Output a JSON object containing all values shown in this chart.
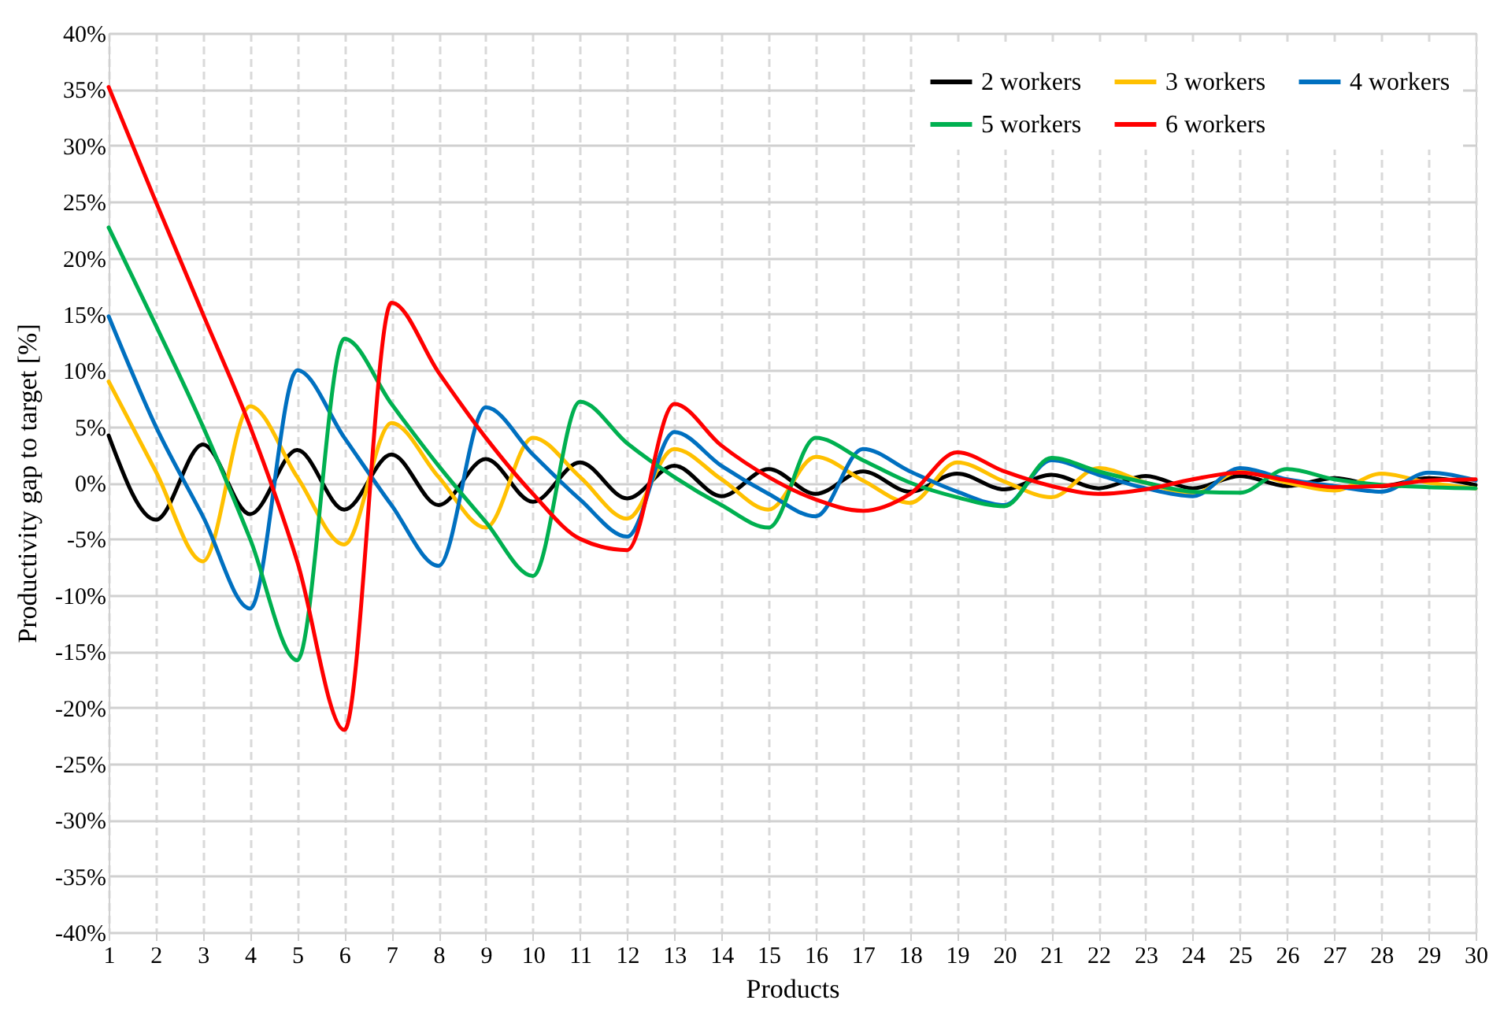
{
  "chart_data": {
    "type": "line",
    "xlabel": "Products",
    "ylabel": "Productivity gap to target  [%]",
    "x": [
      1,
      2,
      3,
      4,
      5,
      6,
      7,
      8,
      9,
      10,
      11,
      12,
      13,
      14,
      15,
      16,
      17,
      18,
      19,
      20,
      21,
      22,
      23,
      24,
      25,
      26,
      27,
      28,
      29,
      30
    ],
    "xlim": [
      1,
      30
    ],
    "xticks": [
      1,
      2,
      3,
      4,
      5,
      6,
      7,
      8,
      9,
      10,
      11,
      12,
      13,
      14,
      15,
      16,
      17,
      18,
      19,
      20,
      21,
      22,
      23,
      24,
      25,
      26,
      27,
      28,
      29,
      30
    ],
    "ylim": [
      -40,
      40
    ],
    "yticks": [
      {
        "value": -40,
        "label": "-40%"
      },
      {
        "value": -35,
        "label": "-35%"
      },
      {
        "value": -30,
        "label": "-30%"
      },
      {
        "value": -25,
        "label": "-25%"
      },
      {
        "value": -20,
        "label": "-20%"
      },
      {
        "value": -15,
        "label": "-15%"
      },
      {
        "value": -10,
        "label": "-10%"
      },
      {
        "value": -5,
        "label": "-5%"
      },
      {
        "value": 0,
        "label": "0%"
      },
      {
        "value": 5,
        "label": "5%"
      },
      {
        "value": 10,
        "label": "10%"
      },
      {
        "value": 15,
        "label": "15%"
      },
      {
        "value": 20,
        "label": "20%"
      },
      {
        "value": 25,
        "label": "25%"
      },
      {
        "value": 30,
        "label": "30%"
      },
      {
        "value": 35,
        "label": "35%"
      },
      {
        "value": 40,
        "label": "40%"
      }
    ],
    "grid": true,
    "legend": "top right",
    "marker": "none",
    "line_style": "solid",
    "series": [
      {
        "name": "2 workers",
        "color": "#000000",
        "values": [
          4.2,
          -3.3,
          3.4,
          -2.8,
          2.9,
          -2.4,
          2.5,
          -2.0,
          2.1,
          -1.7,
          1.8,
          -1.4,
          1.5,
          -1.2,
          1.2,
          -1.0,
          1.0,
          -0.8,
          0.8,
          -0.6,
          0.7,
          -0.5,
          0.6,
          -0.5,
          0.6,
          -0.3,
          0.4,
          -0.3,
          0.4,
          -0.2
        ]
      },
      {
        "name": "3 workers",
        "color": "#ffc000",
        "values": [
          9,
          1,
          -7,
          6.8,
          0.5,
          -5.5,
          5.3,
          0.5,
          -4,
          4,
          0.5,
          -3.2,
          3,
          0.3,
          -2.4,
          2.3,
          0.2,
          -1.8,
          1.8,
          0.1,
          -1.3,
          1.3,
          0,
          -1.0,
          1.0,
          0,
          -0.7,
          0.8,
          0,
          -0.5
        ]
      },
      {
        "name": "4 workers",
        "color": "#0070c0",
        "values": [
          14.8,
          5,
          -3,
          -11.2,
          10,
          4,
          -2,
          -7.4,
          6.7,
          2.5,
          -1.5,
          -4.8,
          4.5,
          1.5,
          -1,
          -3,
          3,
          1,
          -0.8,
          -2,
          2,
          0.7,
          -0.5,
          -1.2,
          1.3,
          0.3,
          -0.3,
          -0.8,
          0.9,
          0.2
        ]
      },
      {
        "name": "5 workers",
        "color": "#00b050",
        "values": [
          22.7,
          14,
          5,
          -5,
          -15.8,
          12.8,
          7,
          1.5,
          -3.5,
          -8.3,
          7.2,
          3.5,
          0.5,
          -2,
          -4,
          4,
          2,
          0,
          -1.3,
          -2.1,
          2.2,
          1,
          0,
          -0.8,
          -0.9,
          1.2,
          0.3,
          -0.2,
          -0.4,
          -0.5
        ]
      },
      {
        "name": "6 workers",
        "color": "#ff0000",
        "values": [
          35.2,
          25,
          15,
          5,
          -7,
          -22,
          16,
          9.8,
          4,
          -1,
          -5,
          -6,
          7,
          3.3,
          0.5,
          -1.5,
          -2.5,
          -1,
          2.7,
          1,
          -0.3,
          -1,
          -0.6,
          0.3,
          0.9,
          0.2,
          -0.4,
          -0.3,
          0.2,
          0.3
        ]
      }
    ]
  }
}
